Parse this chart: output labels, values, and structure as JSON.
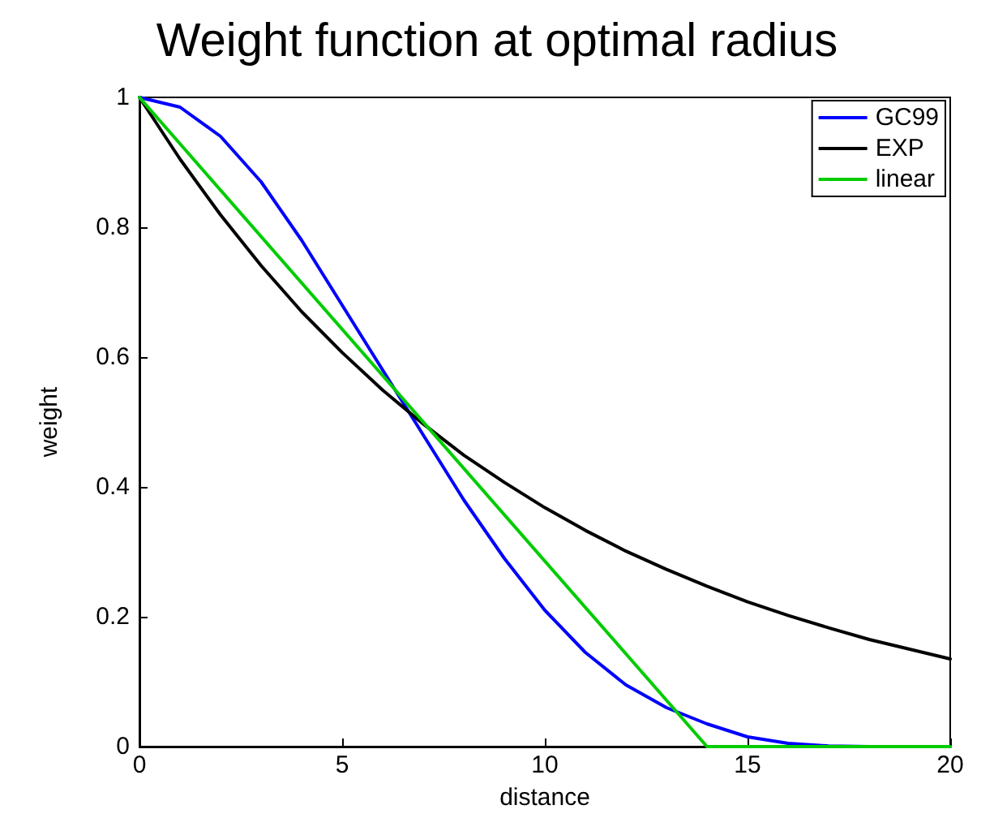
{
  "chart_data": {
    "type": "line",
    "title": "Weight function at optimal radius",
    "xlabel": "distance",
    "ylabel": "weight",
    "x": [
      0,
      1,
      2,
      3,
      4,
      5,
      6,
      7,
      8,
      9,
      10,
      11,
      12,
      13,
      14,
      15,
      16,
      17,
      18,
      19,
      20
    ],
    "series": [
      {
        "name": "GC99",
        "color": "#0000ff",
        "values": [
          1,
          0.985,
          0.94,
          0.87,
          0.78,
          0.68,
          0.58,
          0.48,
          0.38,
          0.29,
          0.21,
          0.145,
          0.095,
          0.06,
          0.035,
          0.015,
          0.005,
          0.001,
          0,
          0,
          0
        ]
      },
      {
        "name": "EXP",
        "color": "#000000",
        "values": [
          1,
          0.905,
          0.819,
          0.741,
          0.67,
          0.607,
          0.549,
          0.497,
          0.449,
          0.407,
          0.368,
          0.333,
          0.301,
          0.273,
          0.247,
          0.223,
          0.202,
          0.183,
          0.165,
          0.15,
          0.135
        ]
      },
      {
        "name": "linear",
        "color": "#00cc00",
        "x": [
          0,
          14,
          20
        ],
        "values": [
          1,
          0,
          0
        ]
      }
    ],
    "xlim": [
      0,
      20
    ],
    "xticks": [
      0,
      5,
      10,
      15,
      20
    ],
    "ylim": [
      0,
      1
    ],
    "yticks": [
      0,
      0.2,
      0.4,
      0.6,
      0.8,
      1
    ],
    "grid": false,
    "legend": "top right",
    "marker": "none",
    "line_style": "solid"
  }
}
